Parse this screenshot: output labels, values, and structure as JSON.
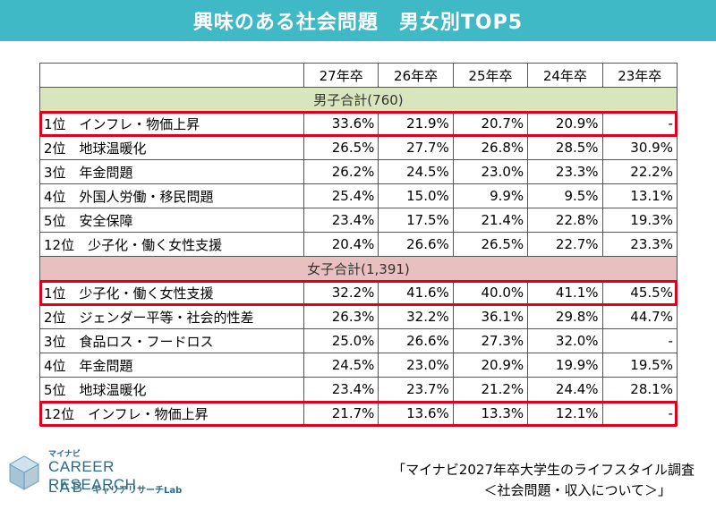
{
  "title": "興味のある社会問題　男女別TOP5",
  "years": [
    "27年卒",
    "26年卒",
    "25年卒",
    "24年卒",
    "23年卒"
  ],
  "male": {
    "header": "男子合計(760)",
    "rows": [
      {
        "label": "1位　インフレ・物価上昇",
        "values": [
          "33.6%",
          "21.9%",
          "20.7%",
          "20.9%",
          "-"
        ],
        "highlight": true
      },
      {
        "label": "2位　地球温暖化",
        "values": [
          "26.5%",
          "27.7%",
          "26.8%",
          "28.5%",
          "30.9%"
        ],
        "highlight": false
      },
      {
        "label": "3位　年金問題",
        "values": [
          "26.2%",
          "24.5%",
          "23.0%",
          "23.3%",
          "22.2%"
        ],
        "highlight": false
      },
      {
        "label": "4位　外国人労働・移民問題",
        "values": [
          "25.4%",
          "15.0%",
          "9.9%",
          "9.5%",
          "13.1%"
        ],
        "highlight": false
      },
      {
        "label": "5位　安全保障",
        "values": [
          "23.4%",
          "17.5%",
          "21.4%",
          "22.8%",
          "19.3%"
        ],
        "highlight": false
      },
      {
        "label": "12位　少子化・働く女性支援",
        "values": [
          "20.4%",
          "26.6%",
          "26.5%",
          "22.7%",
          "23.3%"
        ],
        "highlight": false
      }
    ]
  },
  "female": {
    "header": "女子合計(1,391)",
    "rows": [
      {
        "label": "1位　少子化・働く女性支援",
        "values": [
          "32.2%",
          "41.6%",
          "40.0%",
          "41.1%",
          "45.5%"
        ],
        "highlight": true
      },
      {
        "label": "2位　ジェンダー平等・社会的性差",
        "values": [
          "26.3%",
          "32.2%",
          "36.1%",
          "29.8%",
          "44.7%"
        ],
        "highlight": false
      },
      {
        "label": "3位　食品ロス・フードロス",
        "values": [
          "25.0%",
          "26.6%",
          "27.3%",
          "32.0%",
          "-"
        ],
        "highlight": false
      },
      {
        "label": "4位　年金問題",
        "values": [
          "24.5%",
          "23.0%",
          "20.9%",
          "19.9%",
          "19.5%"
        ],
        "highlight": false
      },
      {
        "label": "5位　地球温暖化",
        "values": [
          "23.4%",
          "23.7%",
          "21.2%",
          "24.4%",
          "28.1%"
        ],
        "highlight": false
      },
      {
        "label": "12位　インフレ・物価上昇",
        "values": [
          "21.7%",
          "13.6%",
          "13.3%",
          "12.1%",
          "-"
        ],
        "highlight": true
      }
    ]
  },
  "logo": {
    "small": "マイナビ",
    "main": "CAREER RESEARCH",
    "lab": "LAB",
    "sub": "キャリアリサーチLab"
  },
  "source": {
    "line1": "「マイナビ2027年卒大学生のライフスタイル調査",
    "line2": "＜社会問題・収入について＞」"
  },
  "colors": {
    "title_bg": "#3fb9c6",
    "male_group_bg": "#d9e5bd",
    "female_group_bg": "#e8c0c0",
    "highlight_border": "#e0001b",
    "logo_text": "#2a6a8c"
  }
}
